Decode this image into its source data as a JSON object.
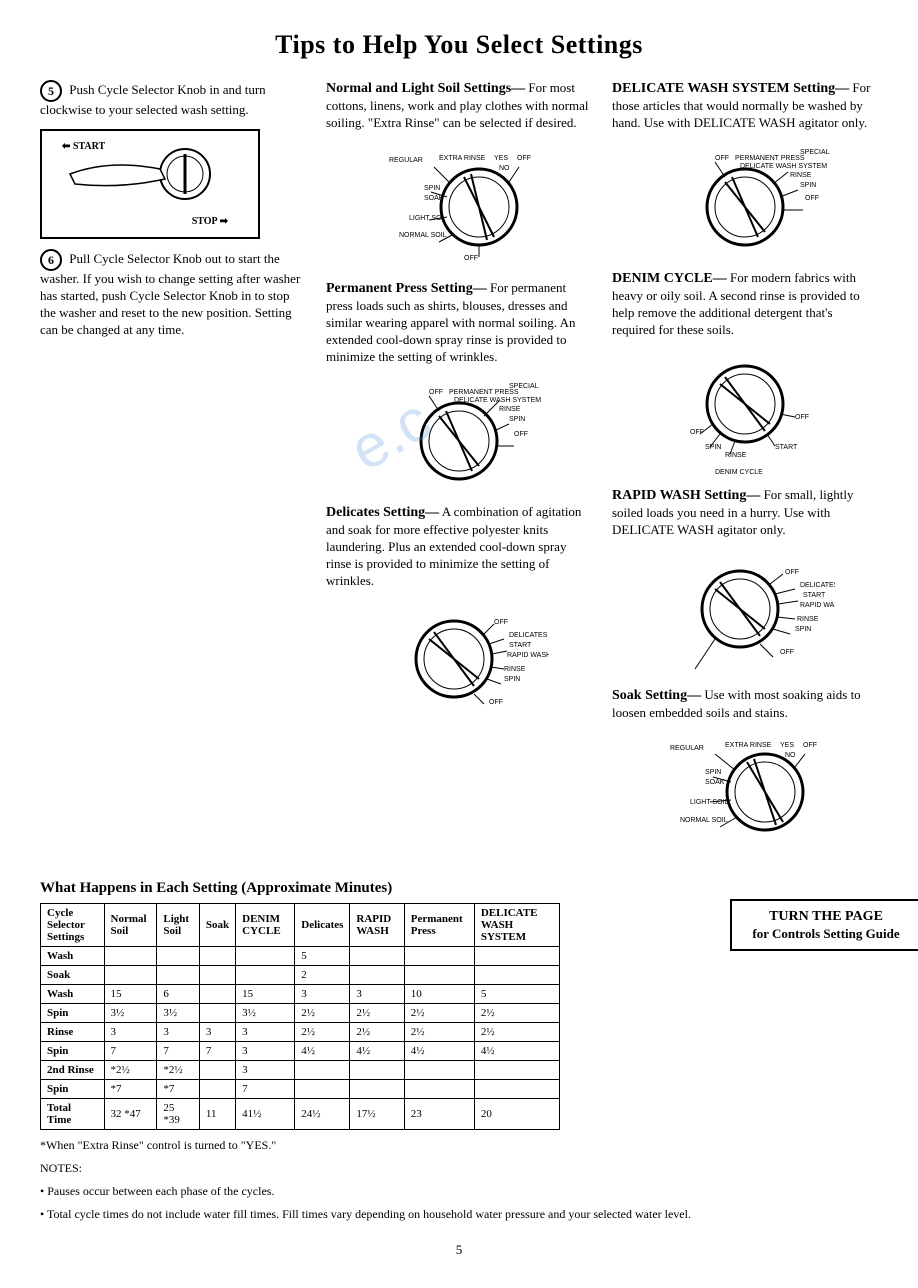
{
  "title": "Tips to Help You Select Settings",
  "col1": {
    "step5": "Push Cycle Selector Knob in and turn clockwise to your selected wash setting.",
    "step5_num": "5",
    "start_label": "START",
    "stop_label": "STOP",
    "step6_num": "6",
    "step6": "Pull Cycle Selector Knob out to start the washer. If you wish to change setting after washer has started, push Cycle Selector Knob in to stop the washer and reset to the new position. Setting can be changed at any time."
  },
  "col2": {
    "normal_title": "Normal and Light Soil Settings—",
    "normal_body": "For most cottons, linens, work and play clothes with normal soiling. \"Extra Rinse\" can be selected if desired.",
    "dial1": {
      "labels": [
        "REGULAR",
        "EXTRA RINSE",
        "YES",
        "OFF",
        "NO",
        "SPIN",
        "SOAK",
        "LIGHT SOIL",
        "NORMAL SOIL",
        "OFF"
      ]
    },
    "perm_title": "Permanent Press Setting—",
    "perm_body": "For permanent press loads such as shirts, blouses, dresses and similar wearing apparel with normal soiling. An extended cool-down spray rinse is provided to minimize the setting of wrinkles.",
    "dial2": {
      "labels": [
        "SPECIAL",
        "OFF",
        "PERMANENT PRESS",
        "DELICATE WASH SYSTEM",
        "RINSE",
        "SPIN",
        "OFF"
      ]
    },
    "del_title": "Delicates Setting—",
    "del_body": "A combination of agitation and soak for more effective polyester knits laundering. Plus an extended cool-down spray rinse is provided to minimize the setting of wrinkles.",
    "dial3": {
      "labels": [
        "OFF",
        "DELICATES",
        "START",
        "RAPID WASH",
        "RINSE",
        "SPIN",
        "OFF"
      ]
    }
  },
  "col3": {
    "delwash_title": "DELICATE WASH SYSTEM Setting—",
    "delwash_body": "For those articles that would normally be washed by hand. Use with DELICATE WASH agitator only.",
    "dial4": {
      "labels": [
        "SPECIAL",
        "OFF",
        "PERMANENT PRESS",
        "DELICATE WASH SYSTEM",
        "RINSE",
        "SPIN",
        "OFF"
      ]
    },
    "denim_title": "DENIM CYCLE—",
    "denim_body": "For modern fabrics with heavy or oily soil. A second rinse is provided to help remove the additional detergent that's required for these soils.",
    "dial5": {
      "labels": [
        "OFF",
        "OFF",
        "SPIN",
        "START",
        "RINSE",
        "DENIM CYCLE"
      ]
    },
    "rapid_title": "RAPID WASH Setting—",
    "rapid_body": "For small, lightly soiled loads you need in a hurry. Use with DELICATE WASH agitator only.",
    "dial6": {
      "labels": [
        "OFF",
        "DELICATES",
        "START",
        "RAPID WASH",
        "RINSE",
        "SPIN",
        "OFF"
      ]
    },
    "soak_title": "Soak Setting—",
    "soak_body": "Use with most soaking aids to loosen embedded soils and stains.",
    "dial7": {
      "labels": [
        "REGULAR",
        "EXTRA RINSE",
        "YES",
        "OFF",
        "NO",
        "SPIN",
        "SOAK",
        "LIGHT SOIL",
        "NORMAL SOIL"
      ]
    }
  },
  "table": {
    "title": "What Happens in Each Setting (Approximate Minutes)",
    "columns": [
      "Cycle Selector Settings",
      "Normal Soil",
      "Light Soil",
      "Soak",
      "DENIM CYCLE",
      "Delicates",
      "RAPID WASH",
      "Permanent Press",
      "DELICATE WASH SYSTEM"
    ],
    "rows": [
      [
        "Wash",
        "",
        "",
        "",
        "",
        "5",
        "",
        "",
        ""
      ],
      [
        "Soak",
        "",
        "",
        "",
        "",
        "2",
        "",
        "",
        ""
      ],
      [
        "Wash",
        "15",
        "6",
        "",
        "15",
        "3",
        "3",
        "10",
        "5"
      ],
      [
        "Spin",
        "3½",
        "3½",
        "",
        "3½",
        "2½",
        "2½",
        "2½",
        "2½"
      ],
      [
        "Rinse",
        "3",
        "3",
        "3",
        "3",
        "2½",
        "2½",
        "2½",
        "2½"
      ],
      [
        "Spin",
        "7",
        "7",
        "7",
        "3",
        "4½",
        "4½",
        "4½",
        "4½"
      ],
      [
        "2nd Rinse",
        "*2½",
        "*2½",
        "",
        "3",
        "",
        "",
        "",
        ""
      ],
      [
        "Spin",
        "*7",
        "*7",
        "",
        "7",
        "",
        "",
        "",
        ""
      ],
      [
        "Total Time",
        "32 *47",
        "25 *39",
        "11",
        "41½",
        "24½",
        "17½",
        "23",
        "20"
      ]
    ]
  },
  "footnote1": "*When \"Extra Rinse\" control is turned to \"YES.\"",
  "notes_title": "NOTES:",
  "note_a": "• Pauses occur between each phase of the cycles.",
  "note_b": "• Total cycle times do not include water fill times. Fill times vary depending on household water pressure and your selected water level.",
  "turn_page": {
    "line1": "TURN THE PAGE",
    "line2": "for Controls Setting Guide"
  },
  "page_number": "5",
  "watermark": "e.c"
}
